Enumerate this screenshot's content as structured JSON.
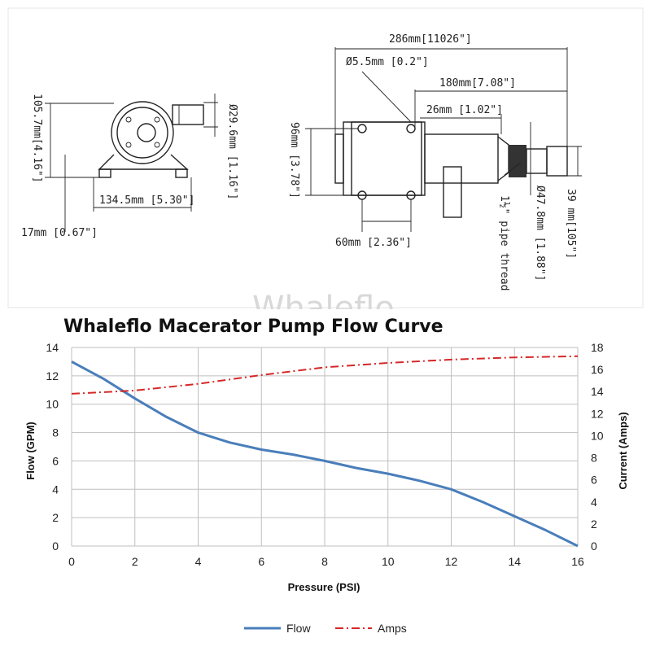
{
  "drawing": {
    "watermark": "Whaleflo",
    "side_view": {
      "height": "105.7mm[4.16\"]",
      "outlet_diameter": "Ø29.6mm [1.16\"]",
      "base_width": "134.5mm [5.30\"]",
      "base_height": "17mm [0.67\"]"
    },
    "top_view": {
      "total_length": "286mm[11026\"]",
      "hole": "Ø5.5mm [0.2\"]",
      "motor_length": "180mm[7.08\"]",
      "offset": "26mm [1.02\"]",
      "height": "96mm [3.78\"]",
      "hole_spacing": "60mm [2.36\"]",
      "pipe_thread": "1½\" pipe thread",
      "outlet_diameter": "Ø47.8mm [1.88\"]",
      "outlet_size": "39 mm[105\"]"
    }
  },
  "chart_data": {
    "type": "line",
    "title": "Whaleflo Macerator Pump Flow Curve",
    "xlabel": "Pressure (PSI)",
    "ylabel": "Flow (GPM)",
    "y2label": "Current (Amps)",
    "xlim": [
      0,
      16
    ],
    "ylim": [
      0,
      14
    ],
    "y2lim": [
      0,
      18
    ],
    "x_ticks": [
      "0",
      "2",
      "4",
      "6",
      "8",
      "10",
      "12",
      "14",
      "16"
    ],
    "y_ticks": [
      "0",
      "2",
      "4",
      "6",
      "8",
      "10",
      "12",
      "14"
    ],
    "y2_ticks": [
      "0",
      "2",
      "4",
      "6",
      "8",
      "10",
      "12",
      "14",
      "16",
      "18"
    ],
    "grid": true,
    "legend_position": "bottom",
    "series": [
      {
        "name": "Flow",
        "axis": "left",
        "color": "#4a7ebb",
        "style": "solid",
        "x": [
          0,
          1,
          2,
          3,
          4,
          5,
          6,
          7,
          8,
          9,
          10,
          11,
          12,
          13,
          14,
          15,
          16
        ],
        "y": [
          13,
          11.8,
          10.4,
          9.1,
          8,
          7.3,
          6.8,
          6.45,
          6,
          5.5,
          5.1,
          4.6,
          4,
          3.1,
          2.1,
          1.1,
          0
        ]
      },
      {
        "name": "Amps",
        "axis": "right",
        "color": "#d62728",
        "style": "dash-dot",
        "x": [
          0,
          2,
          4,
          6,
          8,
          10,
          12,
          14,
          16
        ],
        "y": [
          13.8,
          14.1,
          14.7,
          15.5,
          16.2,
          16.6,
          16.9,
          17.1,
          17.2
        ]
      }
    ]
  }
}
